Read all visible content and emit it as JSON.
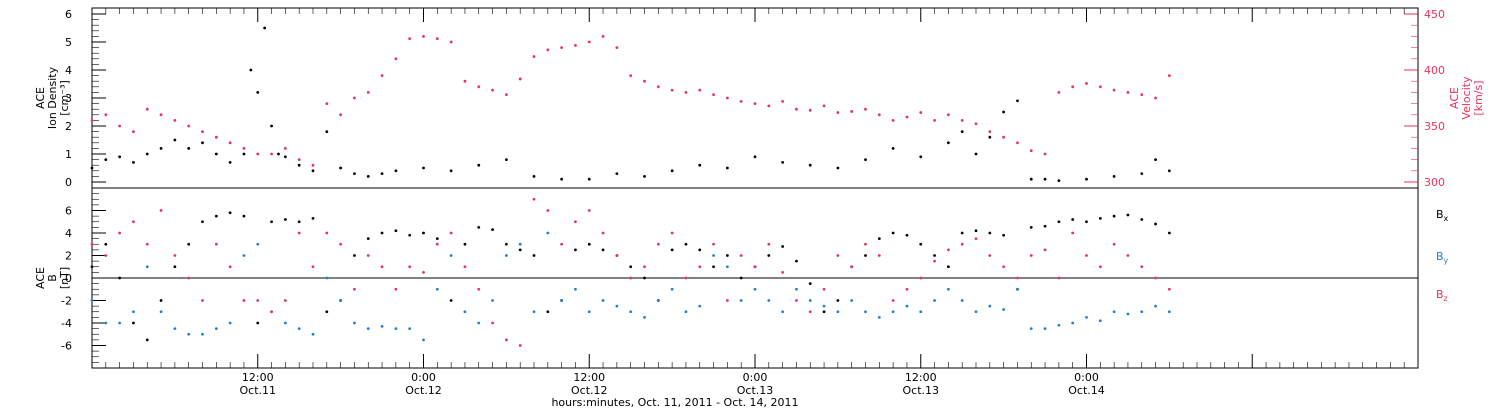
{
  "colors": {
    "density": "#000000",
    "velocity": "#e8325a",
    "bx": "#000000",
    "by": "#1e7fd8",
    "bz": "#e8325a",
    "axis": "#000000"
  },
  "x_axis": {
    "label": "hours:minutes, Oct. 11, 2011 - Oct. 14, 2011",
    "range_hours": [
      0,
      96
    ],
    "ticks": [
      {
        "hour": 12,
        "time": "12:00",
        "date": "Oct.11"
      },
      {
        "hour": 24,
        "time": "0:00",
        "date": "Oct.12"
      },
      {
        "hour": 36,
        "time": "12:00",
        "date": "Oct.12"
      },
      {
        "hour": 48,
        "time": "0:00",
        "date": "Oct.13"
      },
      {
        "hour": 60,
        "time": "12:00",
        "date": "Oct.13"
      },
      {
        "hour": 72,
        "time": "0:00",
        "date": "Oct.14"
      }
    ]
  },
  "chart_data": [
    {
      "type": "scatter",
      "title": "",
      "ylabel_left_lines": [
        "ACE",
        "Ion Density"
      ],
      "ylabel_left_unit": "[cm⁻³]",
      "ylabel_right_lines": [
        "ACE",
        "Velocity"
      ],
      "ylabel_right_unit": "[km/s]",
      "ylim_left": [
        0,
        6
      ],
      "ylim_right": [
        300,
        450
      ],
      "left_ticks": [
        "0",
        "1",
        "2",
        "3",
        "4",
        "5",
        "6"
      ],
      "right_ticks": [
        "300",
        "350",
        "400",
        "450"
      ],
      "series": [
        {
          "axis": "left",
          "hours": [
            0,
            1,
            2,
            3,
            4,
            5,
            6,
            7,
            8,
            9,
            10,
            11,
            11.5,
            12,
            12.5,
            13,
            13.5,
            14,
            15,
            16,
            17,
            18,
            19,
            20,
            21,
            22,
            24,
            26,
            28,
            30,
            32,
            34,
            36,
            38,
            40,
            42,
            44,
            46,
            48,
            50,
            52,
            54,
            56,
            58,
            60,
            62,
            63,
            64,
            65,
            66,
            67,
            68,
            69,
            70,
            72,
            74,
            76,
            77,
            78
          ],
          "values": [
            0.5,
            0.8,
            0.9,
            0.7,
            1.0,
            1.2,
            1.5,
            1.2,
            1.4,
            1.0,
            0.7,
            1.0,
            4.0,
            3.2,
            5.5,
            2.0,
            1.0,
            0.9,
            0.6,
            0.4,
            1.8,
            0.5,
            0.3,
            0.2,
            0.3,
            0.4,
            0.5,
            0.4,
            0.6,
            0.8,
            0.2,
            0.1,
            0.1,
            0.3,
            0.2,
            0.4,
            0.6,
            0.5,
            0.9,
            0.7,
            0.6,
            0.5,
            0.8,
            1.2,
            0.9,
            1.4,
            1.8,
            1.0,
            1.6,
            2.5,
            2.9,
            0.1,
            0.1,
            0.05,
            0.1,
            0.2,
            0.3,
            0.8,
            0.4
          ]
        },
        {
          "axis": "right",
          "hours": [
            0,
            1,
            2,
            3,
            4,
            5,
            6,
            7,
            8,
            9,
            10,
            11,
            12,
            13,
            14,
            15,
            16,
            17,
            18,
            19,
            20,
            21,
            22,
            23,
            24,
            25,
            26,
            27,
            28,
            29,
            30,
            31,
            32,
            33,
            34,
            35,
            36,
            37,
            38,
            39,
            40,
            41,
            42,
            43,
            44,
            45,
            46,
            47,
            48,
            49,
            50,
            51,
            52,
            53,
            54,
            55,
            56,
            57,
            58,
            59,
            60,
            61,
            62,
            63,
            64,
            65,
            66,
            67,
            68,
            69,
            70,
            71,
            72,
            73,
            74,
            75,
            76,
            77,
            78
          ],
          "values": [
            355,
            360,
            350,
            345,
            365,
            360,
            355,
            350,
            345,
            340,
            335,
            330,
            325,
            325,
            330,
            320,
            315,
            370,
            360,
            375,
            380,
            395,
            410,
            428,
            430,
            428,
            425,
            390,
            385,
            382,
            378,
            392,
            412,
            418,
            420,
            422,
            425,
            430,
            420,
            395,
            390,
            385,
            382,
            380,
            382,
            378,
            375,
            372,
            370,
            368,
            372,
            365,
            364,
            368,
            362,
            363,
            365,
            360,
            355,
            358,
            362,
            355,
            360,
            355,
            352,
            345,
            340,
            335,
            328,
            325,
            380,
            385,
            388,
            385,
            382,
            380,
            378,
            375,
            395
          ]
        }
      ]
    },
    {
      "type": "scatter",
      "title": "",
      "ylabel_left_lines": [
        "ACE",
        "B"
      ],
      "ylabel_left_unit": "[nT]",
      "ylim": [
        -8,
        8
      ],
      "left_ticks": [
        "-6",
        "-4",
        "-2",
        "0",
        "2",
        "4",
        "6"
      ],
      "zero_line": true,
      "legend": [
        "Bx",
        "By",
        "Bz"
      ],
      "legend_placement": "right",
      "series": [
        {
          "name": "Bx",
          "hours": [
            0,
            1,
            2,
            3,
            4,
            5,
            6,
            7,
            8,
            9,
            10,
            11,
            12,
            13,
            14,
            15,
            16,
            17,
            18,
            19,
            20,
            21,
            22,
            23,
            24,
            25,
            26,
            27,
            28,
            29,
            30,
            31,
            32,
            33,
            34,
            35,
            36,
            37,
            38,
            39,
            40,
            41,
            42,
            43,
            44,
            45,
            46,
            47,
            48,
            49,
            50,
            51,
            52,
            53,
            54,
            55,
            56,
            57,
            58,
            59,
            60,
            61,
            62,
            63,
            64,
            65,
            66,
            67,
            68,
            69,
            70,
            71,
            72,
            73,
            74,
            75,
            76,
            77,
            78
          ],
          "values": [
            1,
            3,
            0,
            -4,
            -5.5,
            -2,
            1,
            3,
            5,
            5.5,
            5.8,
            5.5,
            -4,
            5,
            5.2,
            5,
            5.3,
            -3,
            -2,
            2,
            3.5,
            4,
            4.2,
            3.8,
            4,
            3.5,
            -2,
            3,
            4.5,
            4.3,
            3,
            2.5,
            2,
            -3,
            -2,
            2.5,
            3,
            2.5,
            2,
            1,
            0,
            -2,
            2.5,
            3,
            2.5,
            1,
            2,
            0,
            1,
            2,
            2.8,
            1.5,
            -0.5,
            -3,
            -2,
            1,
            2,
            3.5,
            4,
            3.8,
            3,
            2,
            1,
            4,
            4.2,
            4,
            3.8,
            -1,
            4.5,
            4.6,
            5,
            5.2,
            5,
            5.3,
            5.5,
            5.6,
            5.2,
            4.8,
            4
          ]
        },
        {
          "name": "By",
          "hours": [
            0,
            1,
            2,
            3,
            4,
            5,
            6,
            7,
            8,
            9,
            10,
            11,
            12,
            13,
            14,
            15,
            16,
            17,
            18,
            19,
            20,
            21,
            22,
            23,
            24,
            25,
            26,
            27,
            28,
            29,
            30,
            31,
            32,
            33,
            34,
            35,
            36,
            37,
            38,
            39,
            40,
            41,
            42,
            43,
            44,
            45,
            46,
            47,
            48,
            49,
            50,
            51,
            52,
            53,
            54,
            55,
            56,
            57,
            58,
            59,
            60,
            61,
            62,
            63,
            64,
            65,
            66,
            67,
            68,
            69,
            70,
            71,
            72,
            73,
            74,
            75,
            76,
            77,
            78
          ],
          "values": [
            -2,
            -4,
            -4,
            -3,
            1,
            -3,
            -4.5,
            -5,
            -5,
            -4.5,
            -4,
            2,
            3,
            -3,
            -4,
            -4.5,
            -5,
            0,
            -2,
            -4,
            -4.5,
            -4.3,
            -4.5,
            -4.5,
            -5.5,
            -1,
            2,
            -3,
            -4,
            -2,
            2,
            3,
            -3,
            4,
            -2,
            -1,
            -3,
            -2,
            -2.5,
            -3,
            -3.5,
            -2,
            -1,
            -3,
            -2.5,
            2,
            1,
            -2,
            -1,
            -2,
            -3,
            -1,
            -2,
            -2.5,
            -3,
            -2,
            -3,
            -3.5,
            -3,
            -2.5,
            -3,
            -2,
            -1,
            -2,
            -3,
            -2.5,
            -2.8,
            -1,
            -4.5,
            -4.5,
            -4.2,
            -4,
            -3.5,
            -3.8,
            -3,
            -3.2,
            -3,
            -2.5,
            -3
          ]
        },
        {
          "name": "Bz",
          "hours": [
            0,
            1,
            2,
            3,
            4,
            5,
            6,
            7,
            8,
            9,
            10,
            11,
            12,
            13,
            14,
            15,
            16,
            17,
            18,
            19,
            20,
            21,
            22,
            23,
            24,
            25,
            26,
            27,
            28,
            29,
            30,
            31,
            32,
            33,
            34,
            35,
            36,
            37,
            38,
            39,
            40,
            41,
            42,
            43,
            44,
            45,
            46,
            47,
            48,
            49,
            50,
            51,
            52,
            53,
            54,
            55,
            56,
            57,
            58,
            59,
            60,
            61,
            62,
            63,
            64,
            65,
            66,
            67,
            68,
            69,
            70,
            71,
            72,
            73,
            74,
            75,
            76,
            77,
            78
          ],
          "values": [
            3,
            2,
            4,
            5,
            3,
            6,
            2,
            0,
            -2,
            3,
            1,
            -2,
            -2,
            -3,
            -2,
            4,
            1,
            4,
            3,
            -1,
            2,
            1,
            -1,
            1,
            0.5,
            3,
            4,
            1,
            -1,
            -4,
            -5.5,
            -6,
            7,
            6,
            3,
            5,
            6,
            4,
            2,
            0,
            1,
            3,
            4,
            0,
            1,
            3,
            -2,
            2,
            1,
            3,
            0.5,
            -2,
            -3,
            -1,
            2,
            1,
            3,
            2,
            -2,
            -1,
            0,
            1.5,
            2.5,
            3,
            3.5,
            2,
            1,
            0,
            2,
            2.5,
            0,
            4,
            2,
            1,
            3,
            2,
            1,
            0,
            -1
          ]
        }
      ]
    }
  ]
}
